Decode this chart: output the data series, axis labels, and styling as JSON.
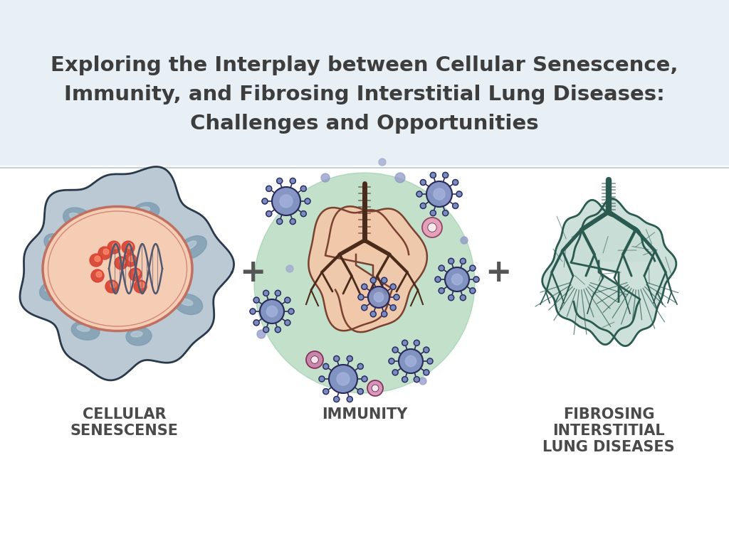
{
  "title_line1": "Exploring the Interplay between Cellular Senescence,",
  "title_line2": "Immunity, and Fibrosing Interstitial Lung Diseases:",
  "title_line3": "Challenges and Opportunities",
  "title_fontsize": 21,
  "title_color": "#3d3d3d",
  "label1": "CELLULAR\nSENESCENSE",
  "label2": "IMMUNITY",
  "label3": "FIBROSING\nINTERSTITIAL\nLUNG DISEASES",
  "label_fontsize": 15,
  "label_color": "#4a4a4a",
  "plus_fontsize": 32,
  "plus_color": "#555555",
  "bg_header": "#e8f0f5",
  "bg_body": "#ffffff",
  "cell_color": "#9aafc0",
  "cell_edge": "#2a3a4a",
  "nucleus_fill": "#f5cdb5",
  "nucleus_edge": "#c07060",
  "spot_color": "#d84030",
  "vacuole_color": "#7a9ab0",
  "lung_fill": "#f2c8aa",
  "lung_edge": "#7a4030",
  "bronchi_color": "#4a2a1a",
  "green_bg": "#90c8a0",
  "virus_fill": "#7a8bbf",
  "virus_edge": "#2a2a5a",
  "fib_lung_fill": "#c8ddd5",
  "fib_lung_edge": "#2a5a50",
  "fib_bronchi": "#2a5a50"
}
